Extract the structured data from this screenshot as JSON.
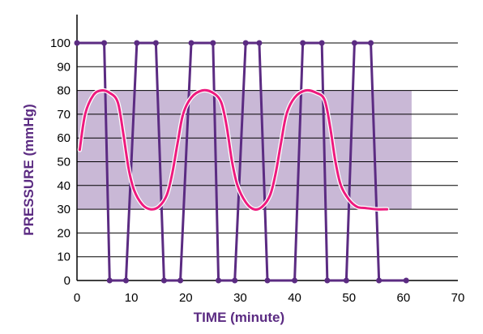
{
  "chart_data": {
    "type": "line",
    "title": "",
    "xlabel": "TIME (minute)",
    "ylabel": "PRESSURE (mmHg)",
    "xlim": [
      0,
      70
    ],
    "ylim": [
      0,
      100
    ],
    "xticks": [
      0,
      10,
      20,
      30,
      40,
      50,
      60,
      70
    ],
    "yticks": [
      0,
      10,
      20,
      30,
      40,
      50,
      60,
      70,
      80,
      90,
      100
    ],
    "grid": "horizontal",
    "band": {
      "from": 30,
      "to": 80,
      "x_from": 0,
      "x_to": 61.5
    },
    "series": [
      {
        "style": "square-wave-markers",
        "points": [
          [
            0,
            100
          ],
          [
            5,
            100
          ],
          [
            6,
            0
          ],
          [
            9,
            0
          ],
          [
            11,
            100
          ],
          [
            14.5,
            100
          ],
          [
            16,
            0
          ],
          [
            19,
            0
          ],
          [
            21,
            100
          ],
          [
            25,
            100
          ],
          [
            26,
            0
          ],
          [
            29,
            0
          ],
          [
            31,
            100
          ],
          [
            33.5,
            100
          ],
          [
            35,
            0
          ],
          [
            40,
            0
          ],
          [
            41.5,
            100
          ],
          [
            45,
            100
          ],
          [
            46,
            0
          ],
          [
            49.5,
            0
          ],
          [
            51,
            100
          ],
          [
            54,
            100
          ],
          [
            55.5,
            0
          ],
          [
            60.5,
            0
          ]
        ]
      },
      {
        "style": "smooth-oscillation",
        "points": [
          [
            0.5,
            55
          ],
          [
            1.5,
            70
          ],
          [
            3,
            78
          ],
          [
            4.5,
            80
          ],
          [
            6,
            79
          ],
          [
            7.5,
            75
          ],
          [
            8.5,
            62
          ],
          [
            9.5,
            47
          ],
          [
            10.5,
            38
          ],
          [
            12,
            32
          ],
          [
            13.5,
            30
          ],
          [
            15,
            31
          ],
          [
            16.5,
            36
          ],
          [
            17.5,
            45
          ],
          [
            18.5,
            58
          ],
          [
            19.5,
            70
          ],
          [
            21,
            77
          ],
          [
            23,
            80
          ],
          [
            25,
            79
          ],
          [
            26.5,
            75
          ],
          [
            27.5,
            65
          ],
          [
            28.5,
            50
          ],
          [
            29.5,
            40
          ],
          [
            31,
            33
          ],
          [
            32.5,
            30
          ],
          [
            34,
            31
          ],
          [
            35.5,
            36
          ],
          [
            36.5,
            45
          ],
          [
            37.5,
            58
          ],
          [
            38.5,
            70
          ],
          [
            40,
            77
          ],
          [
            42,
            80
          ],
          [
            44,
            79
          ],
          [
            45.5,
            76
          ],
          [
            46.5,
            65
          ],
          [
            47.5,
            50
          ],
          [
            48.5,
            40
          ],
          [
            50,
            34
          ],
          [
            51.5,
            31
          ],
          [
            53,
            30.5
          ],
          [
            55,
            30
          ],
          [
            57,
            30
          ]
        ]
      }
    ],
    "colors": {
      "band": "#c9b8d6",
      "axis": "#000000",
      "grid": "#000000",
      "square_wave": "#5b2b82",
      "sine": "#ee1a7e",
      "axis_title": "#5b2b82",
      "tick_labels": "#000000"
    }
  }
}
